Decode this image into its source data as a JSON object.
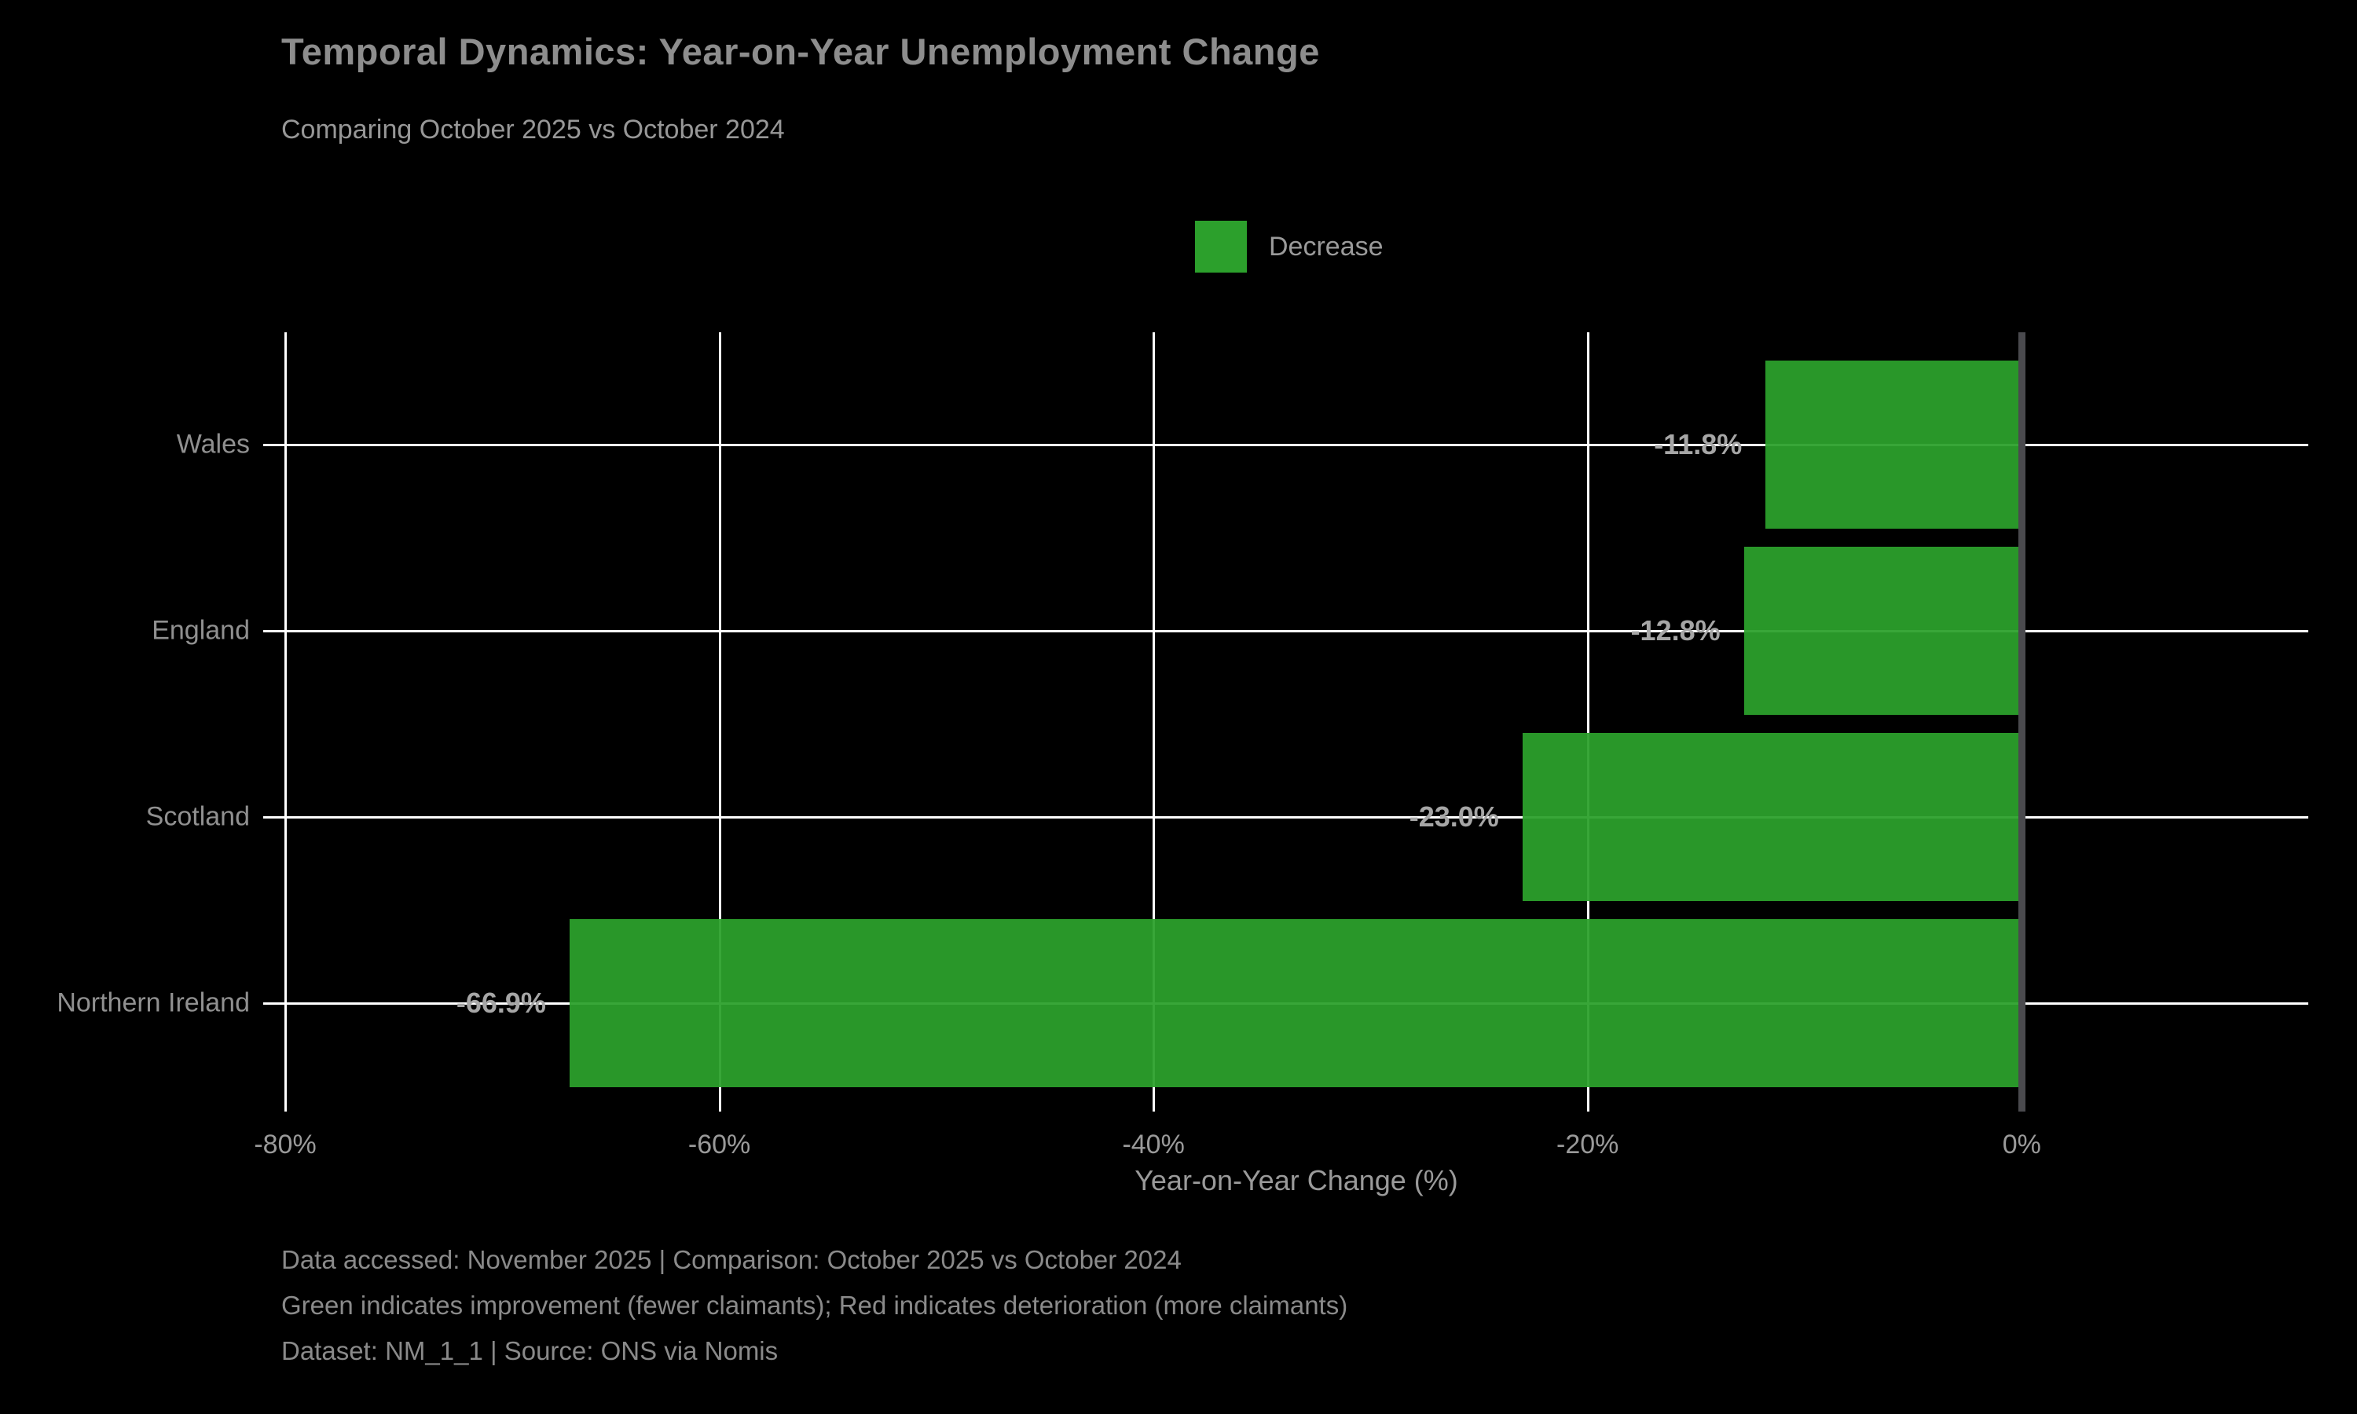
{
  "header": {
    "title": "Temporal Dynamics: Year-on-Year Unemployment Change",
    "subtitle": "Comparing October 2025 vs October 2024"
  },
  "legend": {
    "items": [
      {
        "label": "Decrease",
        "color": "#2ca02c"
      }
    ]
  },
  "chart_data": {
    "type": "bar",
    "orientation": "horizontal",
    "title": "Temporal Dynamics: Year-on-Year Unemployment Change",
    "subtitle": "Comparing October 2025 vs October 2024",
    "categories": [
      "Wales",
      "England",
      "Scotland",
      "Northern Ireland"
    ],
    "values": [
      -11.8,
      -12.8,
      -23.0,
      -66.9
    ],
    "value_labels": [
      "-11.8%",
      "-12.8%",
      "-23.0%",
      "-66.9%"
    ],
    "series_name": "Decrease",
    "bar_color": "#2ca02c",
    "zero_line_color": "#4a4a4e",
    "grid_color": "#ffffff",
    "background_color": "#000000",
    "xlabel": "Year-on-Year Change (%)",
    "xlim": [
      -80,
      13.2
    ],
    "xticks": [
      {
        "value": -80,
        "label": "-80%"
      },
      {
        "value": -60,
        "label": "-60%"
      },
      {
        "value": -40,
        "label": "-40%"
      },
      {
        "value": -20,
        "label": "-20%"
      },
      {
        "value": 0,
        "label": "0%"
      }
    ],
    "grid": true,
    "legend_position": "top-center"
  },
  "footer": {
    "lines": [
      "Data accessed: November 2025 | Comparison: October 2025 vs October 2024",
      "Green indicates improvement (fewer claimants); Red indicates deterioration (more claimants)",
      "Dataset: NM_1_1 | Source: ONS via Nomis"
    ]
  }
}
